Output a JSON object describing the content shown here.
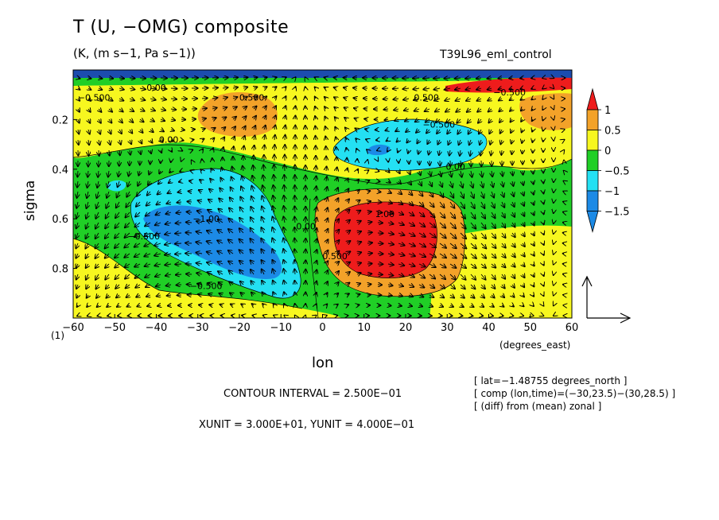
{
  "title": "T (U, −OMG) composite",
  "units": "(K, (m s−1, Pa s−1))",
  "run_name": "T39L96_eml_control",
  "page_number": "(1)",
  "contour_interval": "CONTOUR INTERVAL = 2.500E−01",
  "xyunit": "XUNIT = 3.000E+01, YUNIT = 4.000E−01",
  "notes": [
    "[ lat=−1.48755 degrees_north ]",
    "[ comp (lon,time)=(−30,23.5)−(30,28.5) ]",
    "[ (diff) from (mean) zonal ]"
  ],
  "colors": {
    "red": "#ee1c1c",
    "orange": "#f3a229",
    "yellow": "#f7f71f",
    "green": "#20cf26",
    "cyan": "#24e0f3",
    "blue": "#1c8ae6",
    "navy": "#1c35c8"
  },
  "chart_data": {
    "type": "heatmap",
    "variable": "T",
    "vectors": "(U, −OMG)",
    "xlabel": "lon",
    "x_unit_label": "(degrees_east)",
    "ylabel": "sigma",
    "xlim": [
      -60,
      60
    ],
    "ylim": [
      1.0,
      0.0
    ],
    "x_ticks": [
      -60,
      -50,
      -40,
      -30,
      -20,
      -10,
      0,
      10,
      20,
      30,
      40,
      50,
      60
    ],
    "x_tick_labels": [
      "−60",
      "−50",
      "−40",
      "−30",
      "−20",
      "−10",
      "0",
      "10",
      "20",
      "30",
      "40",
      "50",
      "60"
    ],
    "y_ticks": [
      0.2,
      0.4,
      0.6,
      0.8
    ],
    "y_tick_labels": [
      "0.2",
      "0.4",
      "0.6",
      "0.8"
    ],
    "colorbar": {
      "levels": [
        -1.5,
        -1,
        -0.5,
        0,
        0.5,
        1
      ],
      "labels": [
        "1",
        "0.5",
        "0",
        "−0.5",
        "−1",
        "−1.5"
      ]
    },
    "contour_labels": [
      {
        "text": "−0.500",
        "x": 45,
        "sigma": 0.09
      },
      {
        "text": "0.00",
        "x": -40,
        "sigma": 0.07
      },
      {
        "text": "0.500",
        "x": -17,
        "sigma": 0.11
      },
      {
        "text": "−0.500",
        "x": -55,
        "sigma": 0.11
      },
      {
        "text": "0.500",
        "x": 25,
        "sigma": 0.11
      },
      {
        "text": "−0.500",
        "x": 28,
        "sigma": 0.22
      },
      {
        "text": "0.00",
        "x": -37,
        "sigma": 0.28
      },
      {
        "text": "0.00",
        "x": 32,
        "sigma": 0.39
      },
      {
        "text": "−1.00",
        "x": -28,
        "sigma": 0.6
      },
      {
        "text": "1.00",
        "x": 15,
        "sigma": 0.58
      },
      {
        "text": "−0.500",
        "x": -43,
        "sigma": 0.67
      },
      {
        "text": "0.00",
        "x": -4,
        "sigma": 0.63
      },
      {
        "text": "0.500",
        "x": 3,
        "sigma": 0.75
      },
      {
        "text": "−0.500",
        "x": -28,
        "sigma": 0.87
      }
    ]
  }
}
